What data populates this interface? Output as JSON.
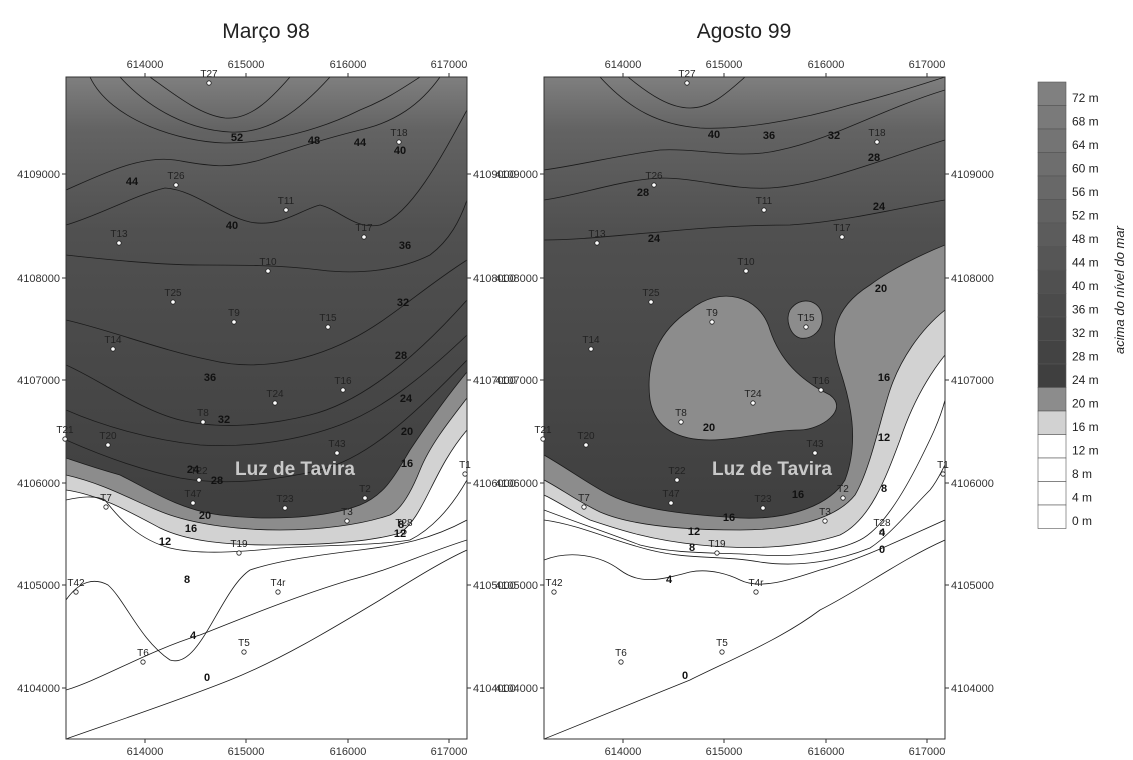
{
  "maps": [
    {
      "id": "marco",
      "title": "Março 98",
      "place_label": "Luz de Tavira",
      "wells": [
        "T27",
        "T18",
        "T26",
        "T11",
        "T17",
        "T13",
        "T10",
        "T25",
        "T9",
        "T15",
        "T14",
        "T16",
        "T24",
        "T8",
        "T21",
        "T20",
        "T43",
        "T22",
        "T47",
        "T23",
        "T3",
        "T2",
        "T1",
        "T7",
        "T28",
        "T19",
        "T4r",
        "T42",
        "T5",
        "T6"
      ],
      "contour_labels": [
        "52",
        "48",
        "44",
        "44",
        "40",
        "40",
        "36",
        "32",
        "28",
        "36",
        "24",
        "32",
        "20",
        "28",
        "24",
        "16",
        "12",
        "8",
        "8",
        "12",
        "4",
        "0",
        "20",
        "16"
      ]
    },
    {
      "id": "agosto",
      "title": "Agosto 99",
      "place_label": "Luz de Tavira",
      "wells": [
        "T27",
        "T18",
        "T26",
        "T11",
        "T17",
        "T13",
        "T10",
        "T25",
        "T9",
        "T15",
        "T14",
        "T16",
        "T24",
        "T8",
        "T21",
        "T20",
        "T43",
        "T22",
        "T47",
        "T23",
        "T3",
        "T2",
        "T1",
        "T7",
        "T28",
        "T19",
        "T4r",
        "T42",
        "T5",
        "T6"
      ],
      "contour_labels": [
        "40",
        "36",
        "32",
        "28",
        "28",
        "24",
        "24",
        "20",
        "20",
        "16",
        "16",
        "12",
        "12",
        "8",
        "8",
        "4",
        "4",
        "0",
        "0",
        "16"
      ]
    }
  ],
  "axes": {
    "x_ticks": [
      "614000",
      "615000",
      "616000",
      "617000"
    ],
    "y_ticks": [
      "4109000",
      "4108000",
      "4107000",
      "4106000",
      "4105000",
      "4104000"
    ]
  },
  "legend": {
    "title": "acima do nível do mar",
    "items": [
      {
        "label": "72 m",
        "color": "#808080"
      },
      {
        "label": "68 m",
        "color": "#7a7a7a"
      },
      {
        "label": "64 m",
        "color": "#747474"
      },
      {
        "label": "60 m",
        "color": "#6e6e6e"
      },
      {
        "label": "56 m",
        "color": "#686868"
      },
      {
        "label": "52 m",
        "color": "#626262"
      },
      {
        "label": "48 m",
        "color": "#5c5c5c"
      },
      {
        "label": "44 m",
        "color": "#565656"
      },
      {
        "label": "40 m",
        "color": "#505050"
      },
      {
        "label": "36 m",
        "color": "#4b4b4b"
      },
      {
        "label": "32 m",
        "color": "#474747"
      },
      {
        "label": "28 m",
        "color": "#434343"
      },
      {
        "label": "24 m",
        "color": "#3f3f3f"
      },
      {
        "label": "20 m",
        "color": "#8c8c8c"
      },
      {
        "label": "16 m",
        "color": "#d2d2d2"
      },
      {
        "label": "12 m",
        "color": "#ffffff"
      },
      {
        "label": "8 m",
        "color": "#ffffff"
      },
      {
        "label": "4 m",
        "color": "#ffffff"
      },
      {
        "label": "0 m",
        "color": "#ffffff"
      }
    ]
  }
}
